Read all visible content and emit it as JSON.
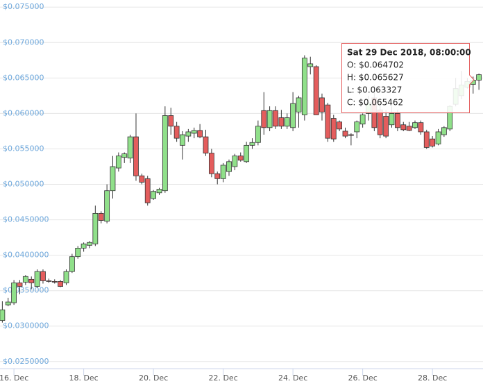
{
  "chart_data": {
    "type": "candlestick",
    "up_color": "#90e08a",
    "down_color": "#e45d5d",
    "outline_color": "#333333",
    "grid": true,
    "xlim": [
      15.6,
      29.45
    ],
    "ylim": [
      0.0241,
      0.076
    ],
    "xticks": [
      {
        "value": 16,
        "label": "16. Dec"
      },
      {
        "value": 18,
        "label": "18. Dec"
      },
      {
        "value": 20,
        "label": "20. Dec"
      },
      {
        "value": 22,
        "label": "22. Dec"
      },
      {
        "value": 24,
        "label": "24. Dec"
      },
      {
        "value": 26,
        "label": "26. Dec"
      },
      {
        "value": 28,
        "label": "28. Dec"
      }
    ],
    "yticks": [
      {
        "value": 0.075,
        "label": "$0.075000"
      },
      {
        "value": 0.07,
        "label": "$0.070000"
      },
      {
        "value": 0.065,
        "label": "$0.065000"
      },
      {
        "value": 0.06,
        "label": "$0.060000"
      },
      {
        "value": 0.055,
        "label": "$0.055000"
      },
      {
        "value": 0.05,
        "label": "$0.050000"
      },
      {
        "value": 0.045,
        "label": "$0.0450000"
      },
      {
        "value": 0.04,
        "label": "$0.0400000"
      },
      {
        "value": 0.035,
        "label": "$0.0350000"
      },
      {
        "value": 0.03,
        "label": "$0.0300000"
      },
      {
        "value": 0.025,
        "label": "$0.0250000"
      }
    ],
    "x": [
      15.667,
      15.833,
      16.0,
      16.167,
      16.333,
      16.5,
      16.667,
      16.833,
      17.0,
      17.167,
      17.333,
      17.5,
      17.667,
      17.833,
      18.0,
      18.167,
      18.333,
      18.5,
      18.667,
      18.833,
      19.0,
      19.167,
      19.333,
      19.5,
      19.667,
      19.833,
      20.0,
      20.167,
      20.333,
      20.5,
      20.667,
      20.833,
      21.0,
      21.167,
      21.333,
      21.5,
      21.667,
      21.833,
      22.0,
      22.167,
      22.333,
      22.5,
      22.667,
      22.833,
      23.0,
      23.167,
      23.333,
      23.5,
      23.667,
      23.833,
      24.0,
      24.167,
      24.333,
      24.5,
      24.667,
      24.833,
      25.0,
      25.167,
      25.333,
      25.5,
      25.667,
      25.833,
      26.0,
      26.167,
      26.333,
      26.5,
      26.667,
      26.833,
      27.0,
      27.167,
      27.333,
      27.5,
      27.667,
      27.833,
      28.0,
      28.167,
      28.333,
      28.5,
      28.667,
      28.833,
      29.0,
      29.167,
      29.333
    ],
    "open": [
      0.0308,
      0.033,
      0.0333,
      0.0361,
      0.0362,
      0.0366,
      0.0356,
      0.0377,
      0.0364,
      0.0363,
      0.0363,
      0.0361,
      0.0377,
      0.0398,
      0.041,
      0.0414,
      0.0416,
      0.0459,
      0.0448,
      0.0491,
      0.0523,
      0.0538,
      0.0537,
      0.0567,
      0.0512,
      0.0508,
      0.048,
      0.0488,
      0.0491,
      0.0597,
      0.0582,
      0.0555,
      0.0568,
      0.0572,
      0.0576,
      0.0567,
      0.0544,
      0.0515,
      0.0508,
      0.0518,
      0.0525,
      0.054,
      0.0532,
      0.0555,
      0.0559,
      0.0604,
      0.058,
      0.0604,
      0.0594,
      0.0582,
      0.058,
      0.0602,
      0.0598,
      0.0666,
      0.0666,
      0.0622,
      0.0612,
      0.0593,
      0.0588,
      0.0575,
      0.057,
      0.0574,
      0.0585,
      0.06,
      0.0622,
      0.0605,
      0.0596,
      0.0584,
      0.06,
      0.0584,
      0.0582,
      0.058,
      0.0587,
      0.0574,
      0.0564,
      0.0557,
      0.057,
      0.0578,
      0.0613,
      0.0625,
      0.0637,
      0.0641,
      0.064702
    ],
    "high": [
      0.0335,
      0.034,
      0.0365,
      0.0365,
      0.0372,
      0.037,
      0.038,
      0.038,
      0.0367,
      0.0366,
      0.0365,
      0.038,
      0.0402,
      0.0413,
      0.0418,
      0.042,
      0.047,
      0.0462,
      0.05,
      0.054,
      0.0545,
      0.0545,
      0.057,
      0.06,
      0.0515,
      0.0512,
      0.0492,
      0.0495,
      0.061,
      0.0608,
      0.0588,
      0.0575,
      0.0578,
      0.058,
      0.0585,
      0.0577,
      0.055,
      0.0518,
      0.053,
      0.0535,
      0.0543,
      0.0545,
      0.056,
      0.0565,
      0.059,
      0.063,
      0.061,
      0.061,
      0.0605,
      0.06,
      0.063,
      0.0625,
      0.0682,
      0.068,
      0.0668,
      0.0628,
      0.0615,
      0.0598,
      0.059,
      0.058,
      0.0572,
      0.059,
      0.06,
      0.0625,
      0.064,
      0.0615,
      0.0605,
      0.061,
      0.0605,
      0.0588,
      0.0588,
      0.059,
      0.059,
      0.0577,
      0.0568,
      0.0578,
      0.0582,
      0.0612,
      0.065,
      0.066,
      0.065,
      0.0652,
      0.065627
    ],
    "low": [
      0.0305,
      0.0328,
      0.033,
      0.0345,
      0.0358,
      0.0352,
      0.0354,
      0.036,
      0.0361,
      0.036,
      0.0355,
      0.0358,
      0.0375,
      0.0395,
      0.0405,
      0.041,
      0.0413,
      0.0445,
      0.0445,
      0.048,
      0.0518,
      0.053,
      0.053,
      0.0505,
      0.05,
      0.047,
      0.0478,
      0.0485,
      0.0488,
      0.057,
      0.056,
      0.0535,
      0.056,
      0.0565,
      0.0565,
      0.054,
      0.051,
      0.05,
      0.0503,
      0.0512,
      0.052,
      0.0532,
      0.053,
      0.055,
      0.0555,
      0.057,
      0.0575,
      0.0578,
      0.0578,
      0.0578,
      0.0575,
      0.058,
      0.059,
      0.0655,
      0.0598,
      0.059,
      0.056,
      0.056,
      0.0575,
      0.0565,
      0.0555,
      0.0565,
      0.058,
      0.059,
      0.0575,
      0.0565,
      0.0565,
      0.058,
      0.0575,
      0.0575,
      0.0575,
      0.0578,
      0.057,
      0.055,
      0.0552,
      0.0555,
      0.0567,
      0.0575,
      0.061,
      0.062,
      0.0635,
      0.0628,
      0.063327
    ],
    "close": [
      0.0323,
      0.0334,
      0.0361,
      0.0356,
      0.037,
      0.0361,
      0.0377,
      0.0364,
      0.0363,
      0.0362,
      0.0356,
      0.0377,
      0.0398,
      0.041,
      0.0416,
      0.0418,
      0.0459,
      0.0449,
      0.0491,
      0.0525,
      0.054,
      0.0543,
      0.0567,
      0.0512,
      0.0503,
      0.0474,
      0.049,
      0.0493,
      0.0597,
      0.0582,
      0.0565,
      0.057,
      0.0574,
      0.0576,
      0.0567,
      0.0544,
      0.0515,
      0.0508,
      0.0527,
      0.0532,
      0.054,
      0.0534,
      0.0555,
      0.0559,
      0.0582,
      0.058,
      0.0604,
      0.0582,
      0.0582,
      0.0594,
      0.0614,
      0.0622,
      0.0678,
      0.067,
      0.0598,
      0.0602,
      0.0565,
      0.0564,
      0.0578,
      0.0568,
      0.0569,
      0.0588,
      0.0598,
      0.0615,
      0.058,
      0.057,
      0.0568,
      0.06,
      0.058,
      0.0577,
      0.0576,
      0.0587,
      0.0574,
      0.0552,
      0.0554,
      0.0574,
      0.058,
      0.061,
      0.0635,
      0.064,
      0.0645,
      0.0647,
      0.065462
    ],
    "tooltip": {
      "title": "Sat 29 Dec 2018, 08:00:00",
      "lines": [
        "O: $0.064702",
        "H: $0.065627",
        "L: $0.063327",
        "C: $0.065462"
      ]
    }
  }
}
